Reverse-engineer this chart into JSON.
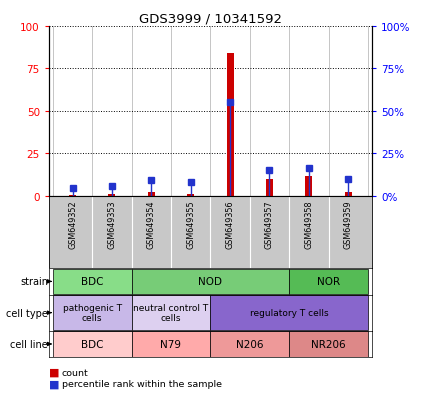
{
  "title": "GDS3999 / 10341592",
  "samples": [
    "GSM649352",
    "GSM649353",
    "GSM649354",
    "GSM649355",
    "GSM649356",
    "GSM649357",
    "GSM649358",
    "GSM649359"
  ],
  "count_values": [
    0.4,
    0.8,
    2.0,
    1.2,
    84.0,
    9.5,
    11.5,
    2.0
  ],
  "percentile_values": [
    4.5,
    5.5,
    9.0,
    8.0,
    55.0,
    15.0,
    16.0,
    10.0
  ],
  "ylim": [
    0,
    100
  ],
  "yticks": [
    0,
    25,
    50,
    75,
    100
  ],
  "bar_color_red": "#cc0000",
  "bar_color_blue": "#2233cc",
  "tick_bg_color": "#c8c8c8",
  "strain_groups": [
    {
      "text": "BDC",
      "start": 0,
      "end": 1,
      "color": "#88dd88"
    },
    {
      "text": "NOD",
      "start": 2,
      "end": 5,
      "color": "#77cc77"
    },
    {
      "text": "NOR",
      "start": 6,
      "end": 7,
      "color": "#55bb55"
    }
  ],
  "celltype_groups": [
    {
      "text": "pathogenic T\ncells",
      "start": 0,
      "end": 1,
      "color": "#c8b8e8"
    },
    {
      "text": "neutral control T\ncells",
      "start": 2,
      "end": 3,
      "color": "#ddd0f0"
    },
    {
      "text": "regulatory T cells",
      "start": 4,
      "end": 7,
      "color": "#8866cc"
    }
  ],
  "cellline_groups": [
    {
      "text": "BDC",
      "start": 0,
      "end": 1,
      "color": "#ffcccc"
    },
    {
      "text": "N79",
      "start": 2,
      "end": 3,
      "color": "#ffaaaa"
    },
    {
      "text": "N206",
      "start": 4,
      "end": 5,
      "color": "#ee9999"
    },
    {
      "text": "NR206",
      "start": 6,
      "end": 7,
      "color": "#dd8888"
    }
  ],
  "legend_count": "count",
  "legend_percentile": "percentile rank within the sample"
}
